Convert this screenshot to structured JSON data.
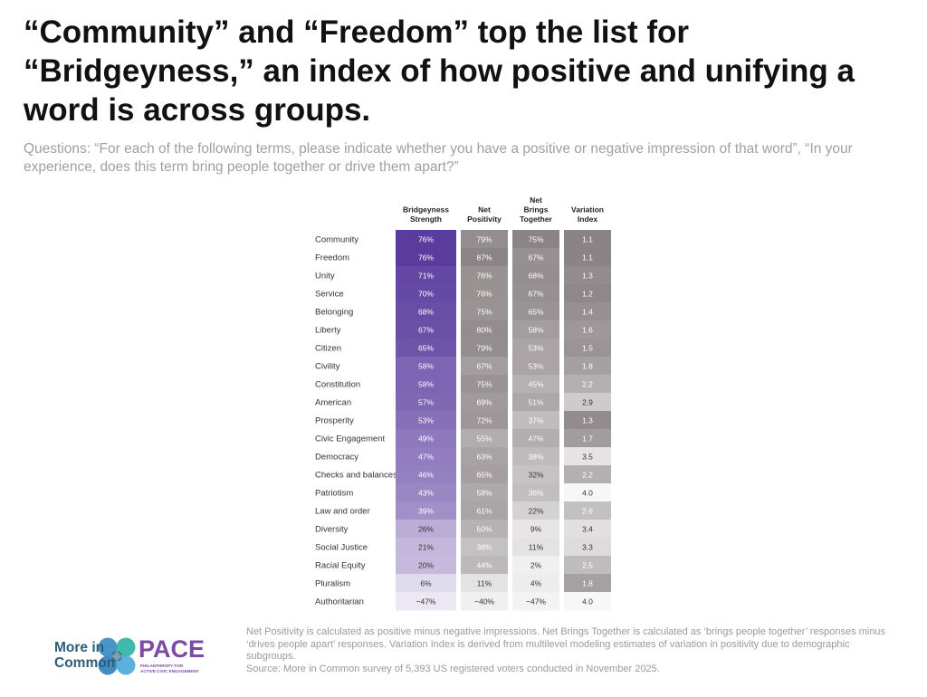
{
  "title": "“Community” and “Freedom” top the list for “Bridgeyness,” an index of how positive and unifying a word is across groups.",
  "subtitle": "Questions: “For each of the following terms, please indicate whether you have a positive or negative impression of that word”, “In your experience, does this term bring people together or drive them apart?”",
  "chart_data": {
    "type": "table",
    "columns": [
      {
        "key": "bridgeyness",
        "label_lines": [
          "Bridgeyness",
          "Strength"
        ],
        "unit": "%",
        "color": "#5a3c9e"
      },
      {
        "key": "net_positivity",
        "label_lines": [
          "Net",
          "Positivity"
        ],
        "unit": "%",
        "color": "#8b8486"
      },
      {
        "key": "net_brings_together",
        "label_lines": [
          "Net",
          "Brings",
          "Together"
        ],
        "unit": "%",
        "color": "#8b8486"
      },
      {
        "key": "variation_index",
        "label_lines": [
          "Variation",
          "Index"
        ],
        "unit": "",
        "color": "#8b8486"
      }
    ],
    "rows": [
      {
        "term": "Community",
        "values": [
          76,
          79,
          75,
          1.1
        ]
      },
      {
        "term": "Freedom",
        "values": [
          76,
          87,
          67,
          1.1
        ]
      },
      {
        "term": "Unity",
        "values": [
          71,
          76,
          68,
          1.3
        ]
      },
      {
        "term": "Service",
        "values": [
          70,
          76,
          67,
          1.2
        ]
      },
      {
        "term": "Belonging",
        "values": [
          68,
          75,
          65,
          1.4
        ]
      },
      {
        "term": "Liberty",
        "values": [
          67,
          80,
          58,
          1.6
        ]
      },
      {
        "term": "Citizen",
        "values": [
          65,
          79,
          53,
          1.5
        ]
      },
      {
        "term": "Civility",
        "values": [
          58,
          67,
          53,
          1.8
        ]
      },
      {
        "term": "Constitution",
        "values": [
          58,
          75,
          45,
          2.2
        ]
      },
      {
        "term": "American",
        "values": [
          57,
          69,
          51,
          2.9
        ]
      },
      {
        "term": "Prosperity",
        "values": [
          53,
          72,
          37,
          1.3
        ]
      },
      {
        "term": "Civic Engagement",
        "values": [
          49,
          55,
          47,
          1.7
        ]
      },
      {
        "term": "Democracy",
        "values": [
          47,
          63,
          38,
          3.5
        ]
      },
      {
        "term": "Checks and balances",
        "values": [
          46,
          65,
          32,
          2.2
        ]
      },
      {
        "term": "Patriotism",
        "values": [
          43,
          58,
          36,
          4.0
        ]
      },
      {
        "term": "Law and order",
        "values": [
          39,
          61,
          22,
          2.6
        ]
      },
      {
        "term": "Diversity",
        "values": [
          26,
          50,
          9,
          3.4
        ]
      },
      {
        "term": "Social Justice",
        "values": [
          21,
          38,
          11,
          3.3
        ]
      },
      {
        "term": "Racial Equity",
        "values": [
          20,
          44,
          2,
          2.5
        ]
      },
      {
        "term": "Pluralism",
        "values": [
          6,
          11,
          4,
          1.8
        ]
      },
      {
        "term": "Authoritarian",
        "values": [
          -47,
          -40,
          -47,
          4.0
        ]
      }
    ]
  },
  "footnote": {
    "definitions": "Net Positivity is calculated as positive minus negative impressions. Net Brings Together is calculated as ‘brings people together’ responses minus ‘drives people apart’ responses. Variation Index is derived from multilevel modeling estimates of variation in positivity due to demographic subgroups.",
    "source": "Source: More in Common survey of 5,393 US registered voters conducted in November 2025."
  },
  "logos": {
    "more_in_common_line1": "More in",
    "more_in_common_line2": "Common",
    "pace_word": "PACE",
    "pace_tag_line1": "PHILANTHROPY FOR",
    "pace_tag_line2": "ACTIVE CIVIC ENGAGEMENT"
  }
}
